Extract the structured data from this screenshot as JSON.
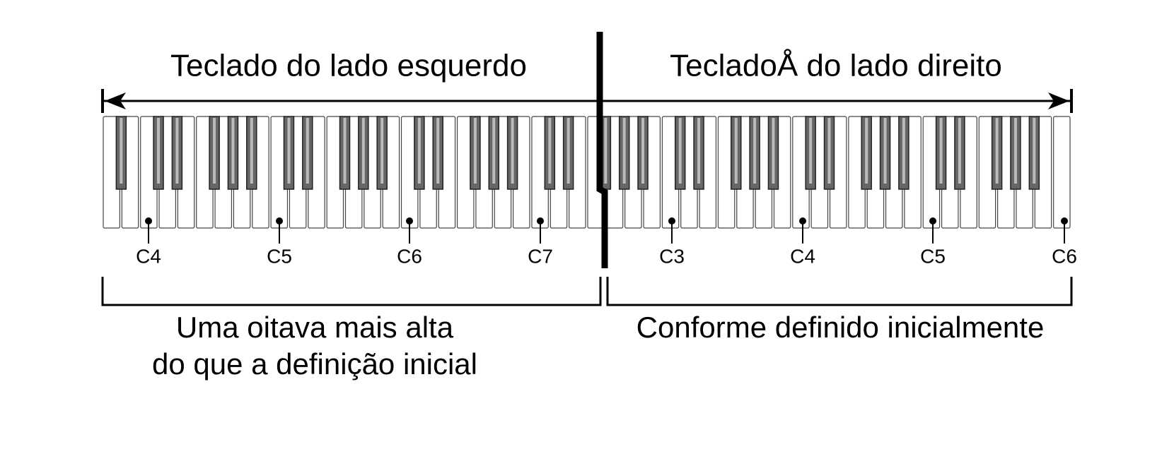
{
  "left": {
    "title": "Teclado do lado esquerdo",
    "notes": [
      "C4",
      "C5",
      "C6",
      "C7"
    ],
    "caption": [
      "Uma oitava mais alta",
      "do que a definição inicial"
    ]
  },
  "right": {
    "title": "TecladoÅ do lado direito",
    "notes": [
      "C3",
      "C4",
      "C5",
      "C6"
    ],
    "caption": [
      "Conforme definido inicialmente"
    ]
  }
}
